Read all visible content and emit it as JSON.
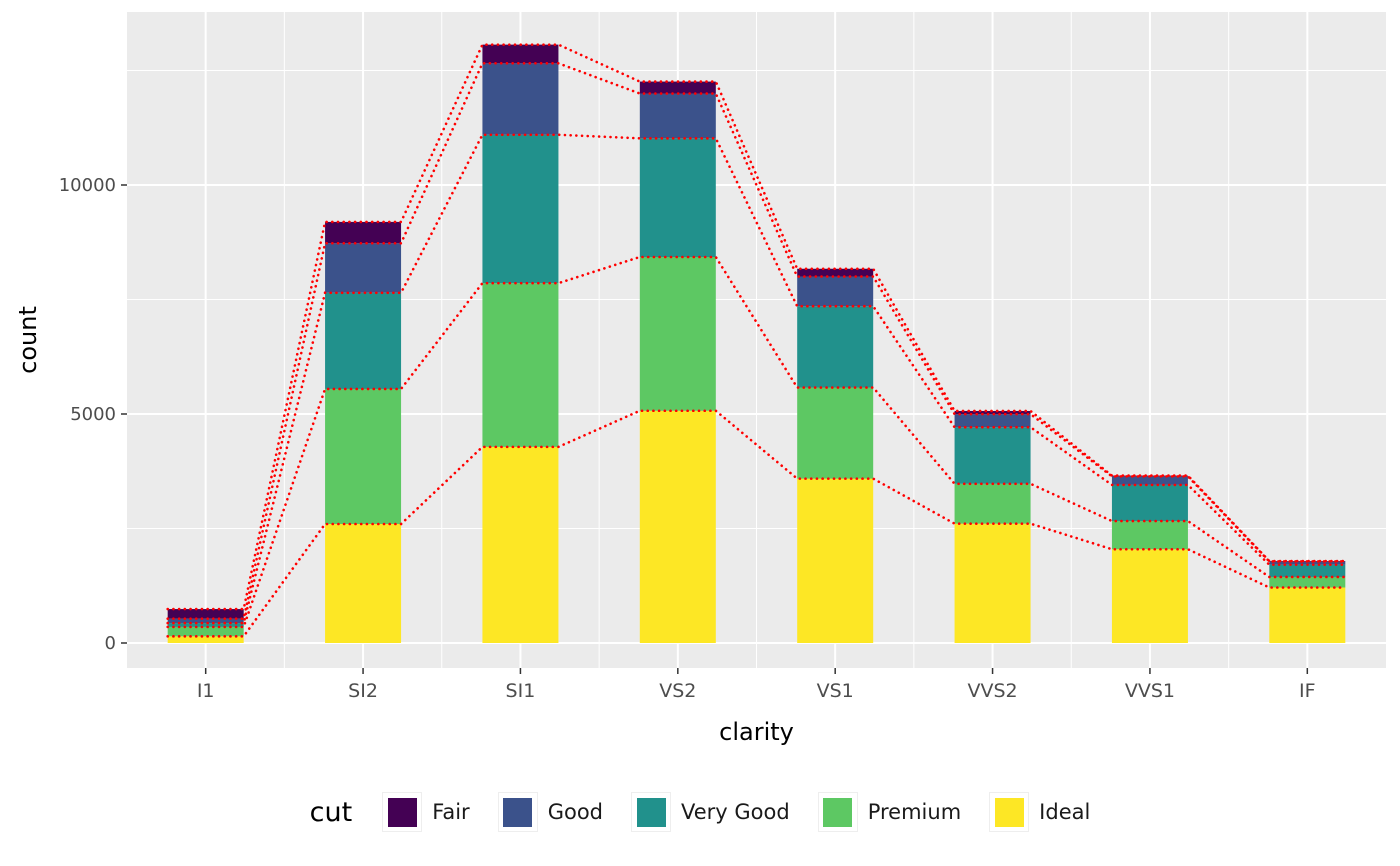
{
  "chart_data": {
    "type": "bar",
    "stacked": true,
    "title": "",
    "xlabel": "clarity",
    "ylabel": "count",
    "categories": [
      "I1",
      "SI2",
      "SI1",
      "VS2",
      "VS1",
      "VVS2",
      "VVS1",
      "IF"
    ],
    "stack_order_bottom_to_top": [
      "Ideal",
      "Premium",
      "Very Good",
      "Good",
      "Fair"
    ],
    "series": [
      {
        "name": "Fair",
        "color": "#440154",
        "values": [
          210,
          466,
          408,
          261,
          170,
          69,
          17,
          9
        ]
      },
      {
        "name": "Good",
        "color": "#3B528B",
        "values": [
          96,
          1081,
          1560,
          978,
          648,
          286,
          186,
          71
        ]
      },
      {
        "name": "Very Good",
        "color": "#21918C",
        "values": [
          84,
          2100,
          3240,
          2591,
          1775,
          1235,
          789,
          268
        ]
      },
      {
        "name": "Premium",
        "color": "#5DC863",
        "values": [
          205,
          2949,
          3575,
          3357,
          1989,
          870,
          616,
          230
        ]
      },
      {
        "name": "Ideal",
        "color": "#FDE725",
        "values": [
          146,
          2598,
          4282,
          5071,
          3589,
          2606,
          2047,
          1212
        ]
      }
    ],
    "totals": [
      741,
      9194,
      13065,
      12258,
      8171,
      5066,
      3655,
      1790
    ],
    "y_ticks": [
      0,
      5000,
      10000
    ],
    "y_minor_ticks": [
      2500,
      7500,
      12500
    ],
    "ylim": [
      0,
      13540
    ],
    "grid": true,
    "legend": {
      "title": "cut",
      "entries": [
        "Fair",
        "Good",
        "Very Good",
        "Premium",
        "Ideal"
      ],
      "position": "bottom"
    },
    "connector_color": "#FF0000",
    "connector_style": "dotted",
    "panel_bg": "#EBEBEB",
    "grid_color": "#FFFFFF",
    "axis_text_color": "#4D4D4D",
    "tick_color": "#333333"
  }
}
